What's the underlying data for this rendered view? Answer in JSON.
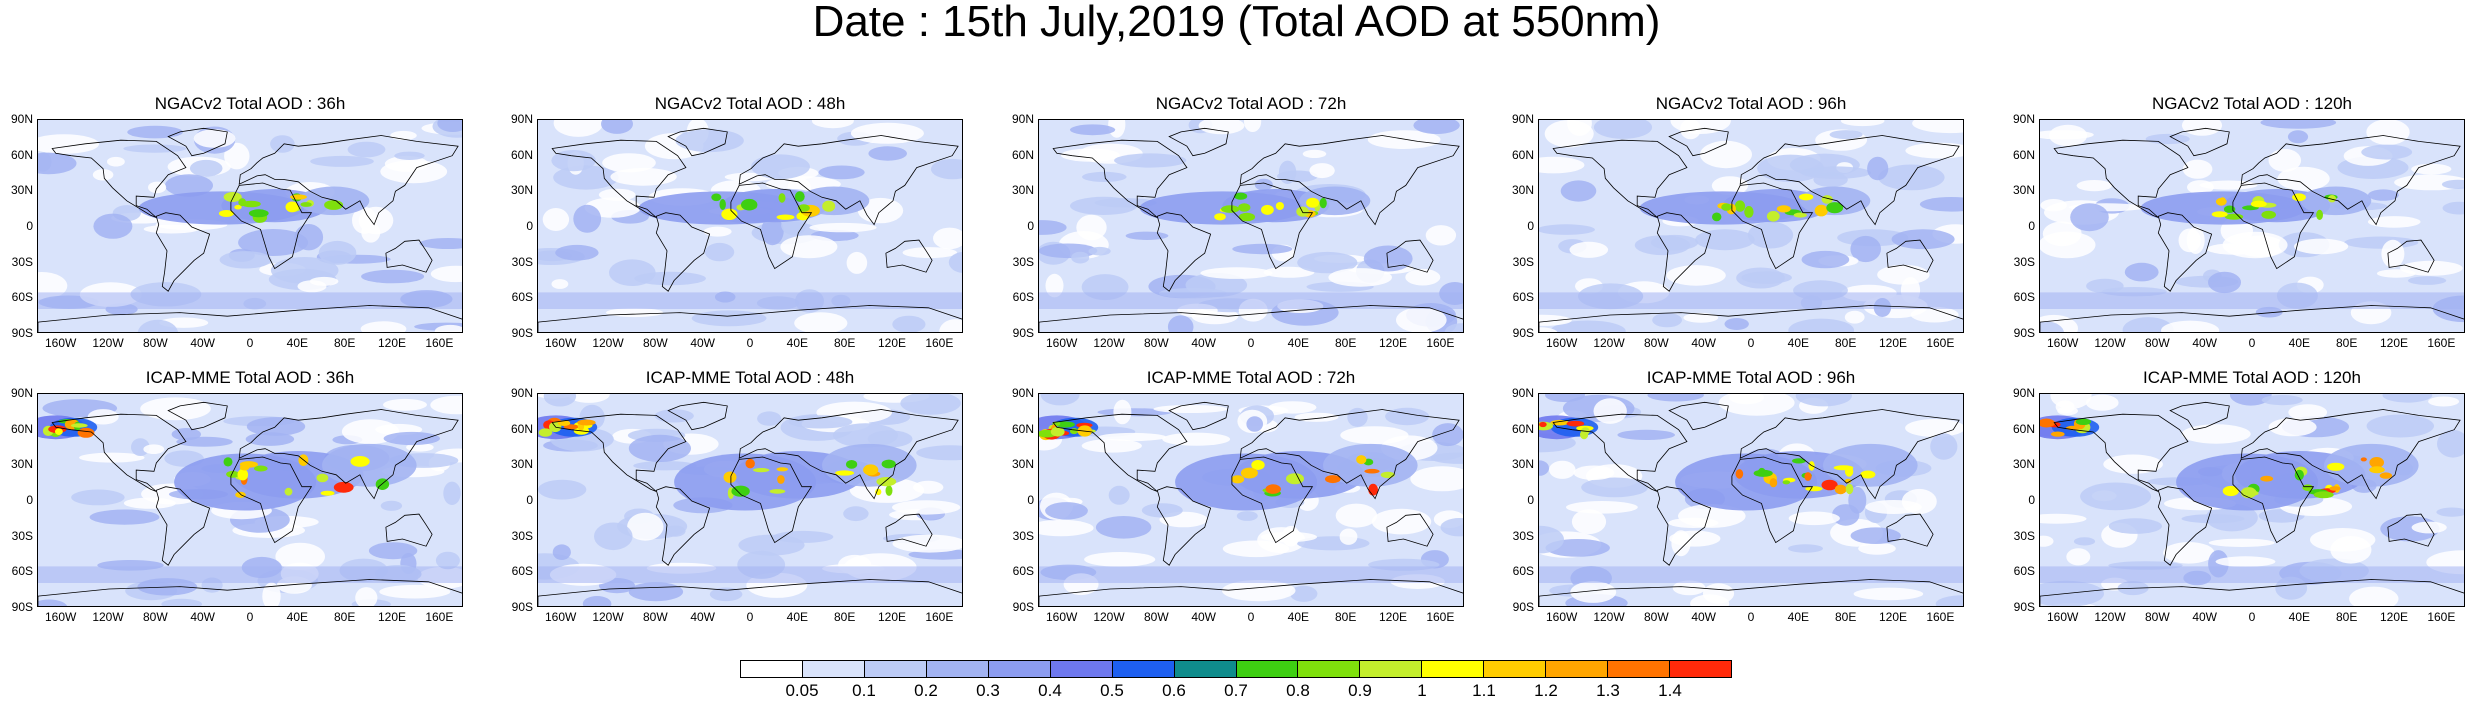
{
  "title": "Date : 15th July,2019 (Total AOD at 550nm)",
  "lat_ticks": [
    "90N",
    "60N",
    "30N",
    "0",
    "30S",
    "60S",
    "90S"
  ],
  "lon_ticks": [
    "160W",
    "120W",
    "80W",
    "40W",
    "0",
    "40E",
    "80E",
    "120E",
    "160E"
  ],
  "panels": [
    {
      "title": "NGACv2 Total AOD : 36h",
      "model": "NGACv2",
      "lead": "36h"
    },
    {
      "title": "NGACv2 Total AOD : 48h",
      "model": "NGACv2",
      "lead": "48h"
    },
    {
      "title": "NGACv2 Total AOD : 72h",
      "model": "NGACv2",
      "lead": "72h"
    },
    {
      "title": "NGACv2 Total AOD : 96h",
      "model": "NGACv2",
      "lead": "96h"
    },
    {
      "title": "NGACv2 Total AOD : 120h",
      "model": "NGACv2",
      "lead": "120h"
    },
    {
      "title": "ICAP-MME Total AOD : 36h",
      "model": "ICAP-MME",
      "lead": "36h"
    },
    {
      "title": "ICAP-MME Total AOD : 48h",
      "model": "ICAP-MME",
      "lead": "48h"
    },
    {
      "title": "ICAP-MME Total AOD : 72h",
      "model": "ICAP-MME",
      "lead": "72h"
    },
    {
      "title": "ICAP-MME Total AOD : 96h",
      "model": "ICAP-MME",
      "lead": "96h"
    },
    {
      "title": "ICAP-MME Total AOD : 120h",
      "model": "ICAP-MME",
      "lead": "120h"
    }
  ],
  "colorbar": {
    "labels": [
      "0.05",
      "0.1",
      "0.2",
      "0.3",
      "0.4",
      "0.5",
      "0.6",
      "0.7",
      "0.8",
      "0.9",
      "1",
      "1.1",
      "1.2",
      "1.3",
      "1.4"
    ],
    "colors": [
      "#ffffff",
      "#d9e3fb",
      "#bccbf6",
      "#a2b3f2",
      "#8c9cf0",
      "#6e78ee",
      "#1e5ff0",
      "#0f8c8c",
      "#3ecf12",
      "#7fe00c",
      "#c4ee2c",
      "#ffff00",
      "#ffcc00",
      "#ffa500",
      "#ff7300",
      "#ff2a0a"
    ]
  }
}
